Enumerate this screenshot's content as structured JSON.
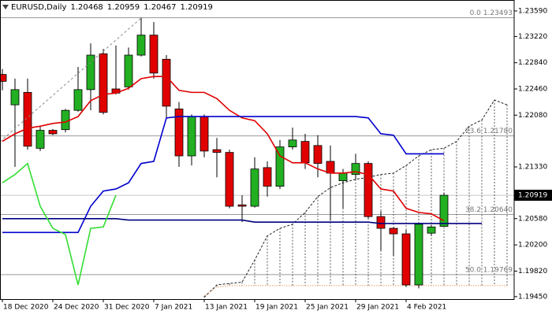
{
  "chart_data": {
    "type": "candlestick",
    "header": {
      "symbol": "EURUSD,Daily",
      "open": 1.20468,
      "high": 1.20959,
      "low": 1.20467,
      "close": 1.20919
    },
    "categories": [
      "18 Dec 2020",
      null,
      null,
      null,
      "24 Dec 2020",
      null,
      null,
      null,
      "31 Dec 2020",
      null,
      null,
      null,
      "7 Jan 2021",
      null,
      null,
      null,
      "13 Jan 2021",
      null,
      null,
      null,
      "19 Jan 2021",
      null,
      null,
      null,
      "25 Jan 2021",
      null,
      null,
      null,
      "29 Jan 2021",
      null,
      null,
      null,
      "4 Feb 2021",
      null,
      null,
      null,
      null,
      null,
      null,
      null,
      null
    ],
    "open": [
      1.2267,
      1.2223,
      1.2241,
      1.216,
      1.2186,
      1.2187,
      1.2215,
      1.2245,
      1.2297,
      1.2246,
      1.2249,
      1.2295,
      1.2324,
      1.2289,
      1.2217,
      1.2149,
      1.2206,
      1.2158,
      1.2154,
      1.2078,
      1.2076,
      1.2132,
      1.2105,
      1.2162,
      1.217,
      1.2164,
      1.2141,
      1.2113,
      1.2122,
      1.2138,
      1.2061,
      1.2044,
      1.2036,
      1.1962,
      1.2037,
      1.20468,
      null,
      null,
      null,
      null,
      null
    ],
    "high": [
      1.2275,
      1.2261,
      1.2261,
      1.2192,
      1.2188,
      1.2217,
      1.2278,
      1.2312,
      1.2304,
      1.2309,
      1.2306,
      1.23493,
      1.2343,
      1.2295,
      1.2227,
      1.2209,
      1.2209,
      1.2175,
      1.2158,
      1.2092,
      1.2147,
      1.2141,
      1.2172,
      1.219,
      1.2181,
      1.2179,
      1.2164,
      1.213,
      1.2152,
      1.2141,
      1.2069,
      1.2046,
      1.2042,
      1.2052,
      1.2049,
      1.20959,
      null,
      null,
      null,
      null,
      null
    ],
    "low": [
      1.2244,
      1.2133,
      1.2158,
      1.2156,
      1.2179,
      1.2183,
      1.2213,
      1.2215,
      1.2209,
      1.2238,
      1.2245,
      1.2293,
      1.2261,
      1.2204,
      1.2133,
      1.2135,
      1.2147,
      1.2118,
      1.2073,
      1.2053,
      1.2074,
      1.209,
      1.2101,
      1.2158,
      1.213,
      1.2118,
      1.2055,
      1.2073,
      1.2115,
      1.2058,
      1.2012,
      1.2004,
      1.1959,
      1.1957,
      1.2033,
      1.20467,
      null,
      null,
      null,
      null,
      null
    ],
    "close": [
      1.2257,
      1.2245,
      1.2163,
      1.2186,
      1.2181,
      1.2215,
      1.2245,
      1.2295,
      1.2212,
      1.224,
      1.2295,
      1.2324,
      1.2269,
      1.2221,
      1.2149,
      1.2206,
      1.2156,
      1.2154,
      1.2076,
      1.2076,
      1.213,
      1.2105,
      1.2162,
      1.2172,
      1.2139,
      1.2138,
      1.2124,
      1.2124,
      1.2138,
      1.2061,
      1.2044,
      1.2036,
      1.1962,
      1.205,
      1.2046,
      1.20919,
      null,
      null,
      null,
      null,
      null
    ],
    "up_color": "#22b022",
    "down_color": "#e00000",
    "lines": [
      {
        "color": "#e00000",
        "style": "solid",
        "values": [
          1.217,
          1.2181,
          1.2189,
          1.2192,
          1.2196,
          1.2198,
          1.2206,
          1.2229,
          1.2238,
          1.224,
          1.2247,
          1.2261,
          1.2264,
          1.2264,
          1.2244,
          1.2241,
          1.2241,
          1.2232,
          1.2215,
          1.2204,
          1.22,
          1.2181,
          1.2149,
          1.2139,
          1.2139,
          1.213,
          1.2124,
          1.2124,
          1.2126,
          1.2122,
          1.2101,
          1.2098,
          1.2073,
          1.2067,
          1.2065,
          1.2055,
          null,
          null,
          null,
          null,
          null
        ]
      },
      {
        "color": "#0000cc",
        "style": "solid",
        "values": [
          1.2038,
          1.2038,
          1.2038,
          1.2038,
          1.2038,
          1.2038,
          1.2038,
          1.2076,
          1.2098,
          1.2101,
          1.211,
          1.2138,
          1.2141,
          1.2204,
          1.2206,
          1.2206,
          1.2206,
          1.2206,
          1.2206,
          1.2206,
          1.2206,
          1.2206,
          1.2206,
          1.2206,
          1.2206,
          1.2206,
          1.2206,
          1.2206,
          1.2206,
          1.2204,
          1.2181,
          1.2179,
          1.2152,
          1.2152,
          1.2152,
          1.2152,
          null,
          null,
          null,
          null,
          null
        ]
      },
      {
        "color": "#000080",
        "style": "solid",
        "values": [
          1.2058,
          1.2058,
          1.2058,
          1.2058,
          1.2058,
          1.2058,
          1.2058,
          1.2058,
          1.2058,
          1.2058,
          1.2056,
          1.2056,
          1.2056,
          1.2056,
          1.2056,
          1.2056,
          1.2056,
          1.2056,
          1.2056,
          1.2056,
          1.2053,
          1.2053,
          1.2053,
          1.2053,
          1.2053,
          1.2053,
          1.2053,
          1.2053,
          1.2053,
          1.2053,
          1.2051,
          1.2051,
          1.2051,
          1.2051,
          1.2051,
          1.2051,
          1.2051,
          1.2051,
          1.2051,
          null,
          null
        ]
      },
      {
        "color": "#33dd33",
        "style": "solid",
        "values": [
          1.211,
          1.2122,
          1.2138,
          1.2076,
          1.2044,
          1.2035,
          1.1962,
          1.2044,
          1.2046,
          1.2092,
          null,
          null,
          null,
          null,
          null,
          null,
          null,
          null,
          null,
          null,
          null,
          null,
          null,
          null,
          null,
          null,
          null,
          null,
          null,
          null,
          null,
          null,
          null,
          null,
          null,
          null,
          null,
          null,
          null,
          null,
          null
        ]
      }
    ],
    "cloud": {
      "span_a": {
        "color": "#222222",
        "values": [
          null,
          null,
          null,
          null,
          null,
          null,
          null,
          null,
          null,
          null,
          null,
          null,
          null,
          null,
          null,
          null,
          1.1944,
          1.1962,
          1.1964,
          1.1966,
          1.1998,
          1.2033,
          1.2044,
          1.205,
          1.2067,
          1.209,
          1.2103,
          1.211,
          1.2115,
          1.2118,
          1.2122,
          1.2124,
          1.2135,
          1.2149,
          1.2158,
          1.216,
          1.217,
          1.2192,
          1.2201,
          1.223,
          1.2223
        ]
      },
      "span_b": {
        "color": "#e07020",
        "values": [
          null,
          null,
          null,
          null,
          null,
          null,
          null,
          null,
          null,
          null,
          null,
          null,
          null,
          null,
          null,
          null,
          1.1946,
          1.1959,
          1.1961,
          1.1961,
          1.1961,
          1.1961,
          1.1961,
          1.1961,
          1.1961,
          1.1961,
          1.1961,
          1.1961,
          1.1961,
          1.1961,
          1.1961,
          1.1961,
          1.1961,
          1.1961,
          1.1961,
          1.1961,
          1.1961,
          1.1961,
          1.1961,
          1.1961,
          1.1961
        ]
      }
    },
    "fib_levels": [
      {
        "value": 1.23493,
        "label": "0.0 1.23493"
      },
      {
        "value": 1.2178,
        "label": "23.6 1.21780"
      },
      {
        "value": 1.2064,
        "label": "38.2 1.20640"
      },
      {
        "value": 1.19769,
        "label": "50.0 1.19769"
      }
    ],
    "current_price": 1.20919,
    "ylim": [
      1.19414,
      1.23749
    ],
    "yticks": [
      {
        "value": 1.2359,
        "label": "1.23590"
      },
      {
        "value": 1.2322,
        "label": "1.23220"
      },
      {
        "value": 1.2284,
        "label": "1.22840"
      },
      {
        "value": 1.2246,
        "label": "1.22460"
      },
      {
        "value": 1.2208,
        "label": "1.22080"
      },
      {
        "value": 1.2133,
        "label": "1.21330"
      },
      {
        "value": 1.2058,
        "label": "1.20580"
      },
      {
        "value": 1.202,
        "label": "1.20200"
      },
      {
        "value": 1.1982,
        "label": "1.19820"
      },
      {
        "value": 1.1945,
        "label": "1.19450"
      }
    ]
  }
}
